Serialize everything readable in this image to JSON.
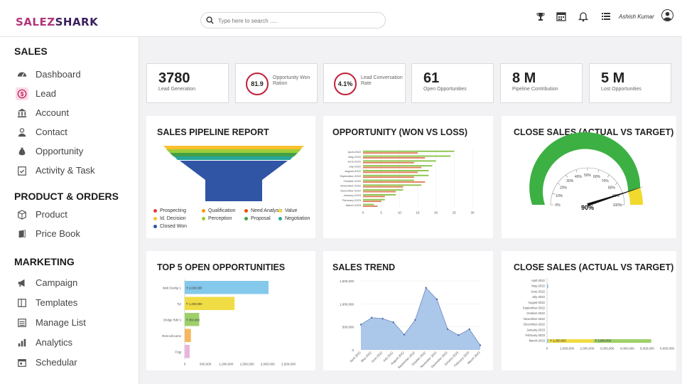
{
  "header": {
    "logo_part1": "SALEZ",
    "logo_part2": "SHARK",
    "search_placeholder": "Type here to search .....",
    "user_name": "Ashish Kumar"
  },
  "sidebar": {
    "sections": [
      {
        "title": "SALES",
        "items": [
          {
            "label": "Dashboard",
            "icon": "dashboard-icon"
          },
          {
            "label": "Lead",
            "icon": "dollar-icon"
          },
          {
            "label": "Account",
            "icon": "bank-icon"
          },
          {
            "label": "Contact",
            "icon": "person-icon"
          },
          {
            "label": "Opportunity",
            "icon": "money-bag-icon"
          },
          {
            "label": "Activity & Task",
            "icon": "checklist-icon"
          }
        ]
      },
      {
        "title": "PRODUCT & ORDERS",
        "items": [
          {
            "label": "Product",
            "icon": "box-icon"
          },
          {
            "label": "Price Book",
            "icon": "book-icon"
          }
        ]
      },
      {
        "title": "MARKETING",
        "items": [
          {
            "label": "Campaign",
            "icon": "megaphone-icon"
          },
          {
            "label": "Templates",
            "icon": "template-icon"
          },
          {
            "label": "Manage List",
            "icon": "list-icon"
          },
          {
            "label": "Analytics",
            "icon": "bar-chart-icon"
          },
          {
            "label": "Schedular",
            "icon": "calendar-icon"
          }
        ]
      }
    ]
  },
  "kpis": [
    {
      "value": "3780",
      "label": "Lead Generation"
    },
    {
      "value": "81.9",
      "label": "Opportunity Won Ration"
    },
    {
      "value": "4.1%",
      "label": "Lead Conversation Rate"
    },
    {
      "value": "61",
      "label": "Open Opportunities"
    },
    {
      "value": "8 M",
      "label": "Pipeline Contribution"
    },
    {
      "value": "5 M",
      "label": "Lost Opportunities"
    }
  ],
  "cards": {
    "pipeline": {
      "title": "SALES PIPELINE REPORT"
    },
    "won_loss": {
      "title": "OPPORTUNITY (WON VS LOSS)"
    },
    "gauge": {
      "title": "CLOSE SALES (ACTUAL VS TARGET)"
    },
    "top5": {
      "title": "TOP 5 OPEN OPPORTUNITIES"
    },
    "trend": {
      "title": "SALES TREND"
    },
    "close2": {
      "title": "CLOSE SALES (ACTUAL VS TARGET)"
    }
  },
  "chart_data": [
    {
      "type": "funnel",
      "title": "SALES PIPELINE REPORT",
      "stages": [
        {
          "name": "Prospecting",
          "color": "#e53935"
        },
        {
          "name": "Qualification",
          "color": "#ff9800"
        },
        {
          "name": "Need Analysis",
          "color": "#e65100"
        },
        {
          "name": "Value",
          "color": "#fdd835"
        },
        {
          "name": "Id. Decision",
          "color": "#fbc02d"
        },
        {
          "name": "Perception",
          "color": "#9ccc3a"
        },
        {
          "name": "Proposal",
          "color": "#43a047"
        },
        {
          "name": "Negotiation",
          "color": "#26a69a"
        },
        {
          "name": "Closed Won",
          "color": "#2f55a4"
        }
      ]
    },
    {
      "type": "bar",
      "title": "OPPORTUNITY (WON VS LOSS)",
      "orientation": "horizontal",
      "categories": [
        "April-2022",
        "May-2022",
        "June-2022",
        "July-2022",
        "August-2022",
        "September-2022",
        "October-2022",
        "November-2022",
        "December-2022",
        "January-2023",
        "February-2023",
        "March-2023"
      ],
      "series": [
        {
          "color": "#8bc34a",
          "values": [
            25,
            24,
            20,
            19,
            18,
            18,
            14,
            16,
            11,
            9,
            6,
            3
          ]
        },
        {
          "color": "#e07f5a",
          "values": [
            15,
            17,
            14,
            16,
            15,
            14,
            17,
            11,
            9,
            6,
            5,
            4
          ]
        }
      ],
      "xlim": [
        0,
        30
      ],
      "xticks": [
        "0",
        "5",
        "10",
        "15",
        "20",
        "25",
        "30"
      ]
    },
    {
      "type": "gauge",
      "title": "CLOSE SALES (ACTUAL VS TARGET)",
      "value": 90,
      "value_label": "90%",
      "ticks": [
        "0%",
        "10%",
        "20%",
        "30%",
        "40%",
        "50%",
        "60%",
        "70%",
        "80%",
        "90%",
        "100%"
      ],
      "bands": [
        {
          "from": 0,
          "to": 90,
          "color": "#3cb043"
        },
        {
          "from": 90,
          "to": 100,
          "color": "#f1d92e"
        }
      ]
    },
    {
      "type": "bar",
      "title": "TOP 5 OPEN OPPORTUNITIES",
      "orientation": "horizontal",
      "categories": [
        "Web Dvelop 1",
        "Tyr",
        "Dridge Rdit V",
        "Rest Lifecome",
        "Frgg"
      ],
      "values": [
        2020000,
        1200000,
        350000,
        150000,
        120000
      ],
      "bar_labels": [
        "₹ 2,020,000",
        "₹ 1,200,000",
        "₹ 350,000",
        "",
        ""
      ],
      "colors": [
        "#84c8ec",
        "#f0dc44",
        "#9ed06a",
        "#f5b860",
        "#e8b6dc"
      ],
      "xlim": [
        0,
        2500000
      ],
      "xticks": [
        "0",
        "500,000",
        "1,000,000",
        "1,500,000",
        "2,000,000",
        "2,500,000"
      ]
    },
    {
      "type": "area",
      "title": "SALES TREND",
      "categories": [
        "April-2022",
        "May-2022",
        "June-2022",
        "July-2022",
        "August-2022",
        "September-2022",
        "October-2022",
        "November-2022",
        "December-2022",
        "January-2023",
        "February-2023",
        "March-2023"
      ],
      "values": [
        550000,
        700000,
        680000,
        600000,
        330000,
        650000,
        1350000,
        1100000,
        450000,
        320000,
        450000,
        100000
      ],
      "ylim": [
        0,
        1500000
      ],
      "yticks": [
        "0",
        "500,000",
        "1,000,000",
        "1,500,000"
      ],
      "color": "#8fb4e3"
    },
    {
      "type": "bar",
      "title": "CLOSE SALES (ACTUAL VS TARGET)",
      "orientation": "horizontal",
      "stacked": true,
      "categories": [
        "April-2022",
        "May-2022",
        "June-2022",
        "July-2022",
        "August-2022",
        "September-2022",
        "October-2022",
        "November-2022",
        "December-2022",
        "January-2023",
        "February-2023",
        "March-2023"
      ],
      "series": [
        {
          "color": "#84c8ec",
          "values": [
            0,
            60000,
            0,
            0,
            0,
            0,
            0,
            0,
            0,
            0,
            0,
            80000
          ]
        },
        {
          "color": "#f0dc44",
          "values": [
            0,
            0,
            0,
            0,
            0,
            0,
            0,
            0,
            0,
            0,
            0,
            2250000
          ]
        },
        {
          "color": "#9ed06a",
          "values": [
            0,
            0,
            0,
            0,
            0,
            0,
            0,
            0,
            0,
            0,
            0,
            2880000
          ]
        }
      ],
      "bar_labels": [
        "₹ 2,250,000",
        "₹ 2,880,000"
      ],
      "xlim": [
        0,
        6000000
      ],
      "xticks": [
        "0",
        "1,000,000",
        "2,000,000",
        "3,000,000",
        "4,000,000",
        "5,000,000",
        "6,000,000"
      ]
    }
  ]
}
